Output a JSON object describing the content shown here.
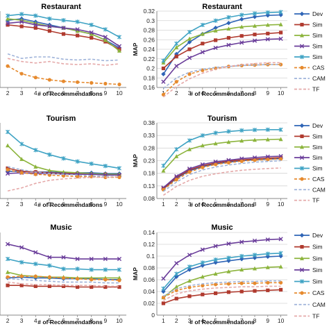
{
  "legend_labels": [
    "Dev",
    "Sim",
    "Sim",
    "Sim",
    "Sim",
    "CAS",
    "CAM",
    "TF"
  ],
  "series_styles": [
    {
      "color": "#2e64b6",
      "marker": "diamond",
      "dash": false
    },
    {
      "color": "#b03a2e",
      "marker": "square",
      "dash": false
    },
    {
      "color": "#8cb43c",
      "marker": "triangle",
      "dash": false
    },
    {
      "color": "#6a3d9a",
      "marker": "x",
      "dash": false
    },
    {
      "color": "#3fa3c4",
      "marker": "star",
      "dash": false
    },
    {
      "color": "#e68a2e",
      "marker": "circle",
      "dash": true
    },
    {
      "color": "#9fb3d9",
      "marker": "none",
      "dash": true
    },
    {
      "color": "#e5a9a9",
      "marker": "none",
      "dash": true
    }
  ],
  "chart_data": [
    {
      "type": "line",
      "panel": "left-top",
      "title": "Restaurant",
      "xlabel": "# of Recommendations",
      "ylabel": "",
      "x": [
        2,
        3,
        4,
        5,
        6,
        7,
        8,
        9,
        10
      ],
      "xlim": [
        1.45,
        10.5
      ],
      "ylim": [
        0.0,
        1.0
      ],
      "yticks": [],
      "ytick_labels": [],
      "series": [
        {
          "name": "",
          "values": [
            0.88,
            0.9,
            0.86,
            0.82,
            0.78,
            0.74,
            0.7,
            0.62,
            0.52
          ]
        },
        {
          "name": "",
          "values": [
            0.82,
            0.8,
            0.78,
            0.74,
            0.7,
            0.68,
            0.65,
            0.6,
            0.5
          ]
        },
        {
          "name": "",
          "values": [
            0.9,
            0.88,
            0.84,
            0.8,
            0.78,
            0.74,
            0.7,
            0.62,
            0.48
          ]
        },
        {
          "name": "",
          "values": [
            0.84,
            0.86,
            0.82,
            0.8,
            0.78,
            0.76,
            0.72,
            0.66,
            0.54
          ]
        },
        {
          "name": "",
          "values": [
            0.94,
            0.96,
            0.94,
            0.9,
            0.88,
            0.86,
            0.82,
            0.76,
            0.66
          ]
        },
        {
          "name": "",
          "values": [
            0.28,
            0.18,
            0.13,
            0.1,
            0.08,
            0.07,
            0.06,
            0.05,
            0.04
          ]
        },
        {
          "name": "",
          "values": [
            0.44,
            0.38,
            0.4,
            0.4,
            0.37,
            0.36,
            0.37,
            0.35,
            0.36
          ]
        },
        {
          "name": "",
          "values": [
            0.38,
            0.34,
            0.32,
            0.34,
            0.31,
            0.3,
            0.31,
            0.29,
            0.31
          ]
        }
      ]
    },
    {
      "type": "line",
      "panel": "right-top",
      "title": "Restaurant",
      "xlabel": "# of Recommendations",
      "ylabel": "MAP",
      "x": [
        1,
        2,
        3,
        4,
        5,
        6,
        7,
        8,
        9,
        10
      ],
      "xlim": [
        0.5,
        10.5
      ],
      "ylim": [
        0.16,
        0.32
      ],
      "yticks": [
        0.16,
        0.18,
        0.2,
        0.22,
        0.24,
        0.26,
        0.28,
        0.3,
        0.32
      ],
      "ytick_labels": [
        "0.16",
        "0.18",
        "0.2",
        "0.22",
        "0.24",
        "0.26",
        "0.28",
        "0.3",
        "0.32"
      ],
      "series": [
        {
          "name": "",
          "values": [
            0.188,
            0.23,
            0.255,
            0.272,
            0.285,
            0.295,
            0.303,
            0.308,
            0.311,
            0.312
          ]
        },
        {
          "name": "",
          "values": [
            0.2,
            0.225,
            0.24,
            0.252,
            0.259,
            0.264,
            0.268,
            0.271,
            0.273,
            0.275
          ]
        },
        {
          "name": "",
          "values": [
            0.212,
            0.244,
            0.262,
            0.272,
            0.279,
            0.283,
            0.287,
            0.289,
            0.291,
            0.292
          ]
        },
        {
          "name": "",
          "values": [
            0.172,
            0.205,
            0.222,
            0.234,
            0.243,
            0.249,
            0.254,
            0.258,
            0.261,
            0.262
          ]
        },
        {
          "name": "",
          "values": [
            0.216,
            0.252,
            0.276,
            0.291,
            0.3,
            0.307,
            0.312,
            0.315,
            0.317,
            0.318
          ]
        },
        {
          "name": "",
          "values": [
            0.145,
            0.172,
            0.188,
            0.196,
            0.2,
            0.204,
            0.206,
            0.207,
            0.208,
            0.208
          ]
        },
        {
          "name": "",
          "values": [
            0.158,
            0.18,
            0.192,
            0.198,
            0.202,
            0.204,
            0.206,
            0.207,
            0.208,
            0.208
          ]
        },
        {
          "name": "",
          "values": [
            0.14,
            0.162,
            0.178,
            0.19,
            0.198,
            0.204,
            0.208,
            0.21,
            0.212,
            0.212
          ]
        }
      ]
    },
    {
      "type": "line",
      "panel": "left-middle",
      "title": "Tourism",
      "xlabel": "# of Recommendations",
      "ylabel": "",
      "x": [
        2,
        3,
        4,
        5,
        6,
        7,
        8,
        9,
        10
      ],
      "xlim": [
        1.45,
        10.5
      ],
      "ylim": [
        0.0,
        1.0
      ],
      "yticks": [],
      "ytick_labels": [],
      "series": [
        {
          "name": "",
          "values": [
            0.36,
            0.36,
            0.35,
            0.35,
            0.34,
            0.34,
            0.34,
            0.33,
            0.33
          ]
        },
        {
          "name": "",
          "values": [
            0.4,
            0.36,
            0.35,
            0.34,
            0.33,
            0.33,
            0.32,
            0.32,
            0.31
          ]
        },
        {
          "name": "",
          "values": [
            0.7,
            0.52,
            0.42,
            0.37,
            0.35,
            0.34,
            0.33,
            0.32,
            0.32
          ]
        },
        {
          "name": "",
          "values": [
            0.33,
            0.34,
            0.33,
            0.33,
            0.32,
            0.32,
            0.32,
            0.31,
            0.31
          ]
        },
        {
          "name": "",
          "values": [
            0.88,
            0.72,
            0.64,
            0.58,
            0.53,
            0.49,
            0.46,
            0.43,
            0.4
          ]
        },
        {
          "name": "",
          "values": [
            0.38,
            0.34,
            0.32,
            0.31,
            0.3,
            0.29,
            0.29,
            0.28,
            0.28
          ]
        },
        {
          "name": "",
          "values": [
            0.42,
            0.38,
            0.35,
            0.33,
            0.32,
            0.31,
            0.3,
            0.29,
            0.29
          ]
        },
        {
          "name": "",
          "values": [
            0.1,
            0.14,
            0.2,
            0.24,
            0.26,
            0.27,
            0.28,
            0.28,
            0.29
          ]
        }
      ]
    },
    {
      "type": "line",
      "panel": "right-middle",
      "title": "Tourism",
      "xlabel": "# of Recommendations",
      "ylabel": "MAP",
      "x": [
        1,
        2,
        3,
        4,
        5,
        6,
        7,
        8,
        9,
        10
      ],
      "xlim": [
        0.5,
        10.5
      ],
      "ylim": [
        0.08,
        0.38
      ],
      "yticks": [
        0.08,
        0.13,
        0.18,
        0.23,
        0.28,
        0.33,
        0.38
      ],
      "ytick_labels": [
        "0.08",
        "0.13",
        "0.18",
        "0.23",
        "0.28",
        "0.33",
        "0.38"
      ],
      "series": [
        {
          "name": "",
          "values": [
            0.118,
            0.16,
            0.19,
            0.206,
            0.217,
            0.224,
            0.23,
            0.234,
            0.236,
            0.238
          ]
        },
        {
          "name": "",
          "values": [
            0.12,
            0.163,
            0.193,
            0.21,
            0.221,
            0.228,
            0.233,
            0.237,
            0.24,
            0.242
          ]
        },
        {
          "name": "",
          "values": [
            0.19,
            0.247,
            0.275,
            0.29,
            0.298,
            0.304,
            0.309,
            0.312,
            0.314,
            0.315
          ]
        },
        {
          "name": "",
          "values": [
            0.123,
            0.168,
            0.198,
            0.215,
            0.226,
            0.232,
            0.238,
            0.242,
            0.246,
            0.248
          ]
        },
        {
          "name": "",
          "values": [
            0.21,
            0.275,
            0.31,
            0.33,
            0.34,
            0.346,
            0.35,
            0.352,
            0.353,
            0.353
          ]
        },
        {
          "name": "",
          "values": [
            0.115,
            0.155,
            0.185,
            0.203,
            0.215,
            0.222,
            0.228,
            0.232,
            0.235,
            0.237
          ]
        },
        {
          "name": "",
          "values": [
            0.108,
            0.145,
            0.175,
            0.193,
            0.205,
            0.213,
            0.219,
            0.224,
            0.227,
            0.23
          ]
        },
        {
          "name": "",
          "values": [
            0.093,
            0.128,
            0.152,
            0.168,
            0.178,
            0.186,
            0.192,
            0.196,
            0.199,
            0.201
          ]
        }
      ]
    },
    {
      "type": "line",
      "panel": "left-bottom",
      "title": "Music",
      "xlabel": "# of Recommendations",
      "ylabel": "",
      "x": [
        2,
        3,
        4,
        5,
        6,
        7,
        8,
        9,
        10
      ],
      "xlim": [
        1.45,
        10.5
      ],
      "ylim": [
        0.0,
        1.0
      ],
      "yticks": [],
      "ytick_labels": [],
      "series": [
        {
          "name": "",
          "values": [
            0.45,
            0.46,
            0.45,
            0.45,
            0.44,
            0.44,
            0.44,
            0.43,
            0.43
          ]
        },
        {
          "name": "",
          "values": [
            0.36,
            0.36,
            0.35,
            0.35,
            0.35,
            0.34,
            0.34,
            0.34,
            0.34
          ]
        },
        {
          "name": "",
          "values": [
            0.52,
            0.48,
            0.47,
            0.46,
            0.46,
            0.45,
            0.45,
            0.45,
            0.45
          ]
        },
        {
          "name": "",
          "values": [
            0.86,
            0.82,
            0.76,
            0.7,
            0.7,
            0.68,
            0.68,
            0.68,
            0.68
          ]
        },
        {
          "name": "",
          "values": [
            0.68,
            0.64,
            0.62,
            0.6,
            0.56,
            0.56,
            0.55,
            0.55,
            0.55
          ]
        },
        {
          "name": "",
          "values": [
            0.46,
            0.47,
            0.47,
            0.46,
            0.45,
            0.44,
            0.43,
            0.43,
            0.42
          ]
        },
        {
          "name": "",
          "values": [
            0.44,
            0.43,
            0.42,
            0.41,
            0.4,
            0.4,
            0.4,
            0.39,
            0.39
          ]
        },
        {
          "name": "",
          "values": [
            0.4,
            0.38,
            0.37,
            0.37,
            0.36,
            0.36,
            0.36,
            0.35,
            0.35
          ]
        }
      ]
    },
    {
      "type": "line",
      "panel": "right-bottom",
      "title": "Music",
      "xlabel": "# of Recommendations",
      "ylabel": "MAP",
      "x": [
        1,
        2,
        3,
        4,
        5,
        6,
        7,
        8,
        9,
        10
      ],
      "xlim": [
        0.5,
        10.5
      ],
      "ylim": [
        0.0,
        0.14
      ],
      "yticks": [
        0,
        0.02,
        0.04,
        0.06,
        0.08,
        0.1,
        0.12,
        0.14
      ],
      "ytick_labels": [
        "0",
        "0.02",
        "0.04",
        "0.06",
        "0.08",
        "0.1",
        "0.12",
        "0.14"
      ],
      "series": [
        {
          "name": "",
          "values": [
            0.04,
            0.065,
            0.077,
            0.084,
            0.089,
            0.092,
            0.095,
            0.097,
            0.099,
            0.1
          ]
        },
        {
          "name": "",
          "values": [
            0.02,
            0.028,
            0.032,
            0.035,
            0.037,
            0.039,
            0.04,
            0.041,
            0.042,
            0.043
          ]
        },
        {
          "name": "",
          "values": [
            0.03,
            0.048,
            0.058,
            0.065,
            0.07,
            0.074,
            0.077,
            0.079,
            0.081,
            0.082
          ]
        },
        {
          "name": "",
          "values": [
            0.062,
            0.088,
            0.102,
            0.111,
            0.117,
            0.121,
            0.124,
            0.126,
            0.128,
            0.129
          ]
        },
        {
          "name": "",
          "values": [
            0.045,
            0.07,
            0.082,
            0.089,
            0.094,
            0.097,
            0.1,
            0.102,
            0.104,
            0.105
          ]
        },
        {
          "name": "",
          "values": [
            0.03,
            0.042,
            0.047,
            0.05,
            0.052,
            0.053,
            0.054,
            0.054,
            0.055,
            0.055
          ]
        },
        {
          "name": "",
          "values": [
            0.032,
            0.045,
            0.05,
            0.053,
            0.055,
            0.056,
            0.057,
            0.057,
            0.058,
            0.058
          ]
        },
        {
          "name": "",
          "values": [
            0.025,
            0.036,
            0.041,
            0.044,
            0.046,
            0.047,
            0.048,
            0.048,
            0.049,
            0.049
          ]
        }
      ]
    }
  ]
}
